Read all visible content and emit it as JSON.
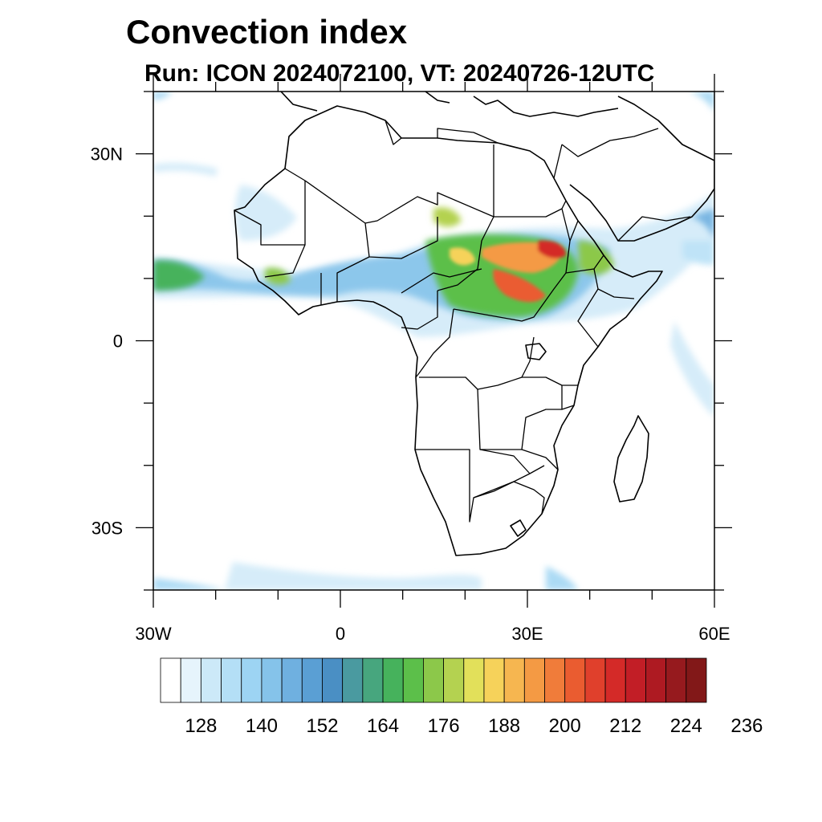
{
  "title": "Convection index",
  "subtitle": "Run: ICON 2024072100,  VT: 20240726-12UTC",
  "map": {
    "lon_range": [
      -30,
      60
    ],
    "lat_range": [
      -40,
      40
    ],
    "x_ticks": [
      {
        "lon": -30,
        "label": "30W"
      },
      {
        "lon": 0,
        "label": "0"
      },
      {
        "lon": 30,
        "label": "30E"
      },
      {
        "lon": 60,
        "label": "60E"
      }
    ],
    "y_ticks": [
      {
        "lat": 30,
        "label": "30N"
      },
      {
        "lat": 0,
        "label": "0"
      },
      {
        "lat": -30,
        "label": "30S"
      }
    ]
  },
  "colorbar": {
    "colors": [
      "#ffffff",
      "#e6f4fc",
      "#cce9f8",
      "#b4dff6",
      "#9dd4f3",
      "#85c3ea",
      "#6fb0e0",
      "#5a9fd4",
      "#4a8fc4",
      "#4a9aa0",
      "#47a67e",
      "#46b25c",
      "#5cbf4a",
      "#8cc84a",
      "#b4d250",
      "#e2e05a",
      "#f6d25a",
      "#f6b650",
      "#f49a44",
      "#f07c3a",
      "#ea5c30",
      "#e0402c",
      "#d42a28",
      "#c21e26",
      "#ae1a22",
      "#961a1e",
      "#821818"
    ],
    "labels": [
      "128",
      "140",
      "152",
      "164",
      "176",
      "188",
      "200",
      "212",
      "224",
      "236"
    ]
  }
}
